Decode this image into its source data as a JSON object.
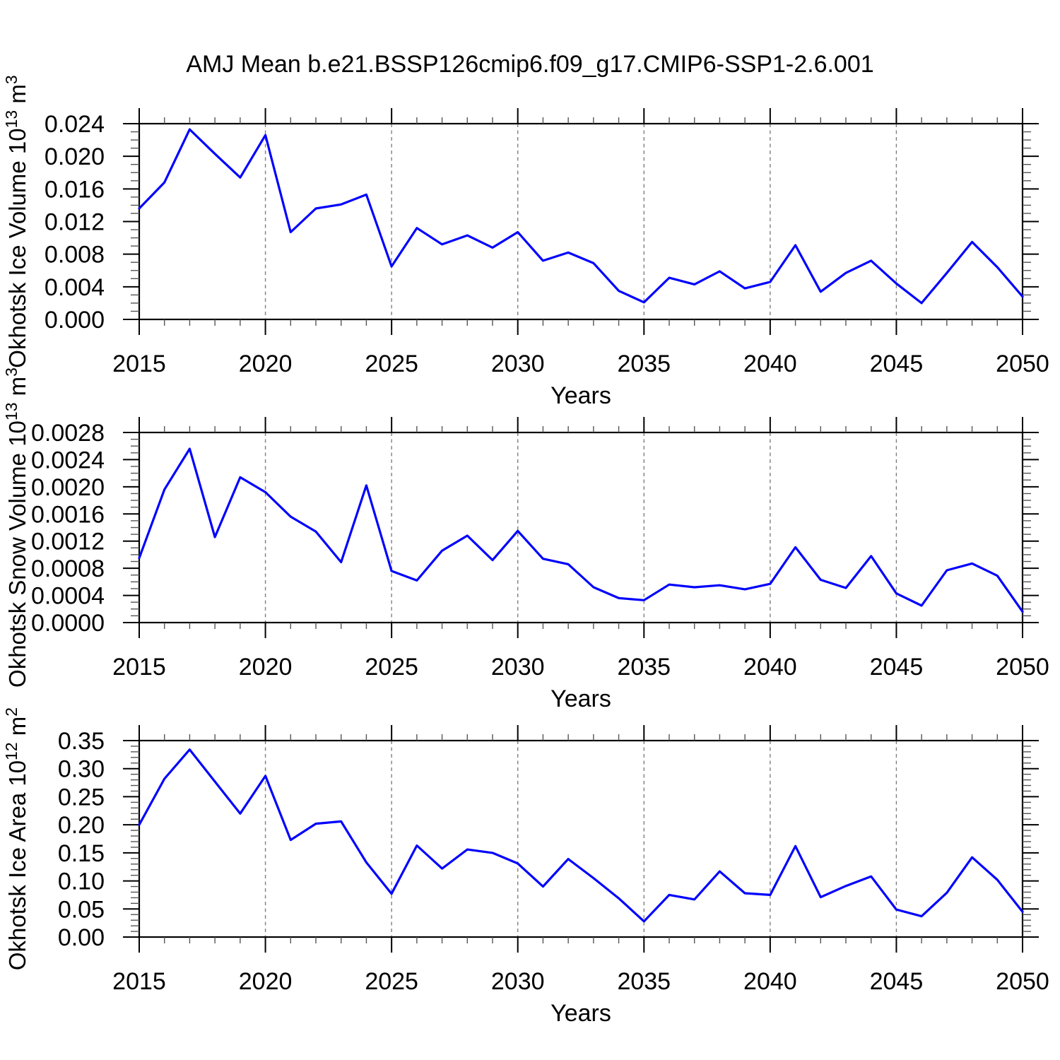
{
  "title": "AMJ Mean b.e21.BSSP126cmip6.f09_g17.CMIP6-SSP1-2.6.001",
  "colors": {
    "line": "#0000ff",
    "grid": "#7f7f7f",
    "axis": "#000000"
  },
  "chart_data": [
    {
      "type": "line",
      "name": "ice-volume",
      "ylabel": "Okhotsk Ice Volume 10^13 m^3",
      "ylabel_segments": [
        {
          "t": "Okhotsk Ice Volume 10",
          "sup": false
        },
        {
          "t": "13",
          "sup": true
        },
        {
          "t": " m",
          "sup": false
        },
        {
          "t": "3",
          "sup": true
        }
      ],
      "xlabel": "Years",
      "ylim": [
        0,
        0.024
      ],
      "ytick_step": 0.004,
      "yminor_step": 0.001,
      "ytick_labels": [
        "0.000",
        "0.004",
        "0.008",
        "0.012",
        "0.016",
        "0.020",
        "0.024"
      ],
      "xticks": [
        2015,
        2020,
        2025,
        2030,
        2035,
        2040,
        2045,
        2050
      ],
      "xtick_labels": [
        "2015",
        "2020",
        "2025",
        "2030",
        "2035",
        "2040",
        "2045",
        "2050"
      ],
      "xminor_step": 1,
      "vgrid": [
        2020,
        2025,
        2030,
        2035,
        2040,
        2045
      ],
      "x": [
        2015,
        2016,
        2017,
        2018,
        2019,
        2020,
        2021,
        2022,
        2023,
        2024,
        2025,
        2026,
        2027,
        2028,
        2029,
        2030,
        2031,
        2032,
        2033,
        2034,
        2035,
        2036,
        2037,
        2038,
        2039,
        2040,
        2041,
        2042,
        2043,
        2044,
        2045,
        2046,
        2047,
        2048,
        2049,
        2050
      ],
      "values": [
        0.0136,
        0.0168,
        0.0233,
        0.0203,
        0.0174,
        0.0226,
        0.0107,
        0.0136,
        0.0141,
        0.0153,
        0.0065,
        0.0112,
        0.0092,
        0.0103,
        0.0088,
        0.0107,
        0.0072,
        0.0082,
        0.0069,
        0.0035,
        0.0021,
        0.0051,
        0.0043,
        0.0059,
        0.0038,
        0.0046,
        0.0091,
        0.0034,
        0.0057,
        0.0072,
        0.0044,
        0.002,
        0.0057,
        0.0095,
        0.0064,
        0.0028
      ]
    },
    {
      "type": "line",
      "name": "snow-volume",
      "ylabel": "Okhotsk Snow Volume 10^13 m^3",
      "ylabel_segments": [
        {
          "t": "Okhotsk Snow Volume 10",
          "sup": false
        },
        {
          "t": "13",
          "sup": true
        },
        {
          "t": " m",
          "sup": false
        },
        {
          "t": "3",
          "sup": true
        }
      ],
      "xlabel": "Years",
      "ylim": [
        0,
        0.0028
      ],
      "ytick_step": 0.0004,
      "yminor_step": 0.0001,
      "ytick_labels": [
        "0.0000",
        "0.0004",
        "0.0008",
        "0.0012",
        "0.0016",
        "0.0020",
        "0.0024",
        "0.0028"
      ],
      "xticks": [
        2015,
        2020,
        2025,
        2030,
        2035,
        2040,
        2045,
        2050
      ],
      "xtick_labels": [
        "2015",
        "2020",
        "2025",
        "2030",
        "2035",
        "2040",
        "2045",
        "2050"
      ],
      "xminor_step": 1,
      "vgrid": [
        2020,
        2025,
        2030,
        2035,
        2040,
        2045
      ],
      "x": [
        2015,
        2016,
        2017,
        2018,
        2019,
        2020,
        2021,
        2022,
        2023,
        2024,
        2025,
        2026,
        2027,
        2028,
        2029,
        2030,
        2031,
        2032,
        2033,
        2034,
        2035,
        2036,
        2037,
        2038,
        2039,
        2040,
        2041,
        2042,
        2043,
        2044,
        2045,
        2046,
        2047,
        2048,
        2049,
        2050
      ],
      "values": [
        0.00095,
        0.00196,
        0.00256,
        0.00126,
        0.00214,
        0.00192,
        0.00156,
        0.00134,
        0.00089,
        0.00202,
        0.00076,
        0.00062,
        0.00106,
        0.00128,
        0.00092,
        0.00135,
        0.00094,
        0.00086,
        0.00052,
        0.00036,
        0.00033,
        0.00056,
        0.00052,
        0.00055,
        0.00049,
        0.00057,
        0.00111,
        0.00063,
        0.00051,
        0.00098,
        0.00043,
        0.00025,
        0.00077,
        0.00087,
        0.00069,
        0.00016
      ]
    },
    {
      "type": "line",
      "name": "ice-area",
      "ylabel": "Okhotsk Ice Area 10^12 m^2",
      "ylabel_segments": [
        {
          "t": "Okhotsk Ice Area 10",
          "sup": false
        },
        {
          "t": "12",
          "sup": true
        },
        {
          "t": " m",
          "sup": false
        },
        {
          "t": "2",
          "sup": true
        }
      ],
      "xlabel": "Years",
      "ylim": [
        0,
        0.35
      ],
      "ytick_step": 0.05,
      "yminor_step": 0.01,
      "ytick_labels": [
        "0.00",
        "0.05",
        "0.10",
        "0.15",
        "0.20",
        "0.25",
        "0.30",
        "0.35"
      ],
      "xticks": [
        2015,
        2020,
        2025,
        2030,
        2035,
        2040,
        2045,
        2050
      ],
      "xtick_labels": [
        "2015",
        "2020",
        "2025",
        "2030",
        "2035",
        "2040",
        "2045",
        "2050"
      ],
      "xminor_step": 1,
      "vgrid": [
        2020,
        2025,
        2030,
        2035,
        2040,
        2045
      ],
      "x": [
        2015,
        2016,
        2017,
        2018,
        2019,
        2020,
        2021,
        2022,
        2023,
        2024,
        2025,
        2026,
        2027,
        2028,
        2029,
        2030,
        2031,
        2032,
        2033,
        2034,
        2035,
        2036,
        2037,
        2038,
        2039,
        2040,
        2041,
        2042,
        2043,
        2044,
        2045,
        2046,
        2047,
        2048,
        2049,
        2050
      ],
      "values": [
        0.2,
        0.282,
        0.334,
        0.277,
        0.22,
        0.287,
        0.173,
        0.202,
        0.206,
        0.133,
        0.077,
        0.163,
        0.122,
        0.156,
        0.15,
        0.131,
        0.09,
        0.139,
        0.105,
        0.069,
        0.028,
        0.075,
        0.067,
        0.117,
        0.078,
        0.075,
        0.162,
        0.071,
        0.091,
        0.108,
        0.049,
        0.037,
        0.079,
        0.142,
        0.102,
        0.045
      ]
    }
  ]
}
